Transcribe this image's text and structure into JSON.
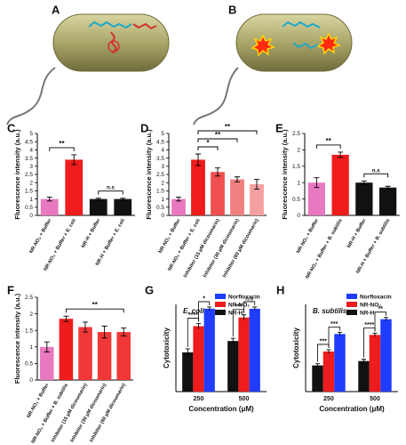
{
  "figure": {
    "panel_labels": {
      "A": "A",
      "B": "B",
      "C": "C",
      "D": "D",
      "E": "E",
      "F": "F",
      "G": "G",
      "H": "H"
    },
    "colors": {
      "pink": "#e879c0",
      "red": "#ee1c1c",
      "red_mid": "#f05050",
      "red_light": "#f28080",
      "red_pale": "#f5a0a0",
      "black": "#111111",
      "blue": "#1f3cff",
      "bacterium": "#a8a468"
    }
  },
  "chart_data": [
    {
      "panel": "C",
      "type": "bar",
      "ylabel": "Fluorescence intensity (a.u.)",
      "ylim": [
        0,
        5
      ],
      "yticks": [
        "0",
        "0.5",
        "1",
        "1.5",
        "2",
        "2.5",
        "3",
        "3.5",
        "4",
        "4.5",
        "5"
      ],
      "categories": [
        "NR-NO₂ + Buffer",
        "NR-NO₂ + Buffer + E. coli",
        "NR-H + Buffer",
        "NR-H + Buffer + E. coli"
      ],
      "values": [
        1.0,
        3.4,
        1.0,
        1.0
      ],
      "errors": [
        0.12,
        0.3,
        0.05,
        0.05
      ],
      "colors": [
        "#e879c0",
        "#ee1c1c",
        "#111111",
        "#111111"
      ],
      "annotations": [
        {
          "from": 0,
          "to": 1,
          "text": "**"
        },
        {
          "from": 2,
          "to": 3,
          "text": "n.s"
        }
      ]
    },
    {
      "panel": "D",
      "type": "bar",
      "ylabel": "Fluorescence intensity (a.u.)",
      "ylim": [
        0,
        5
      ],
      "yticks": [
        "0",
        "0.5",
        "1",
        "1.5",
        "2",
        "2.5",
        "3",
        "3.5",
        "4",
        "4.5",
        "5"
      ],
      "categories": [
        "NR-NO₂ + Buffer",
        "NR-NO₂ + Buffer + E. coli",
        "Inhibitor (15 μM dicoumarin)",
        "Inhibitor (30 μM dicoumarin)",
        "Inhibitor (60 μM dicoumarin)"
      ],
      "values": [
        1.0,
        3.4,
        2.65,
        2.2,
        1.9
      ],
      "errors": [
        0.12,
        0.35,
        0.25,
        0.15,
        0.3
      ],
      "colors": [
        "#e879c0",
        "#ee1c1c",
        "#f05050",
        "#f28080",
        "#f5a0a0"
      ],
      "annotations": [
        {
          "from": 1,
          "to": 2,
          "text": "*"
        },
        {
          "from": 1,
          "to": 3,
          "text": "**"
        },
        {
          "from": 1,
          "to": 4,
          "text": "**"
        }
      ]
    },
    {
      "panel": "E",
      "type": "bar",
      "ylabel": "Fluorescence intensity (a.u.)",
      "ylim": [
        0,
        2.5
      ],
      "yticks": [
        "0",
        "0.5",
        "1",
        "1.5",
        "2",
        "2.5"
      ],
      "categories": [
        "NR-NO₂ + Buffer",
        "NR-NO₂ + Buffer + B. subtilis",
        "NR-H + Buffer",
        "NR-H + Buffer + B. subtilis"
      ],
      "values": [
        1.0,
        1.85,
        1.0,
        0.85
      ],
      "errors": [
        0.15,
        0.08,
        0.05,
        0.04
      ],
      "colors": [
        "#e879c0",
        "#ee1c1c",
        "#111111",
        "#111111"
      ],
      "annotations": [
        {
          "from": 0,
          "to": 1,
          "text": "**"
        },
        {
          "from": 2,
          "to": 3,
          "text": "n.s"
        }
      ]
    },
    {
      "panel": "F",
      "type": "bar",
      "ylabel": "Fluorescence intensity (a.u.)",
      "ylim": [
        0,
        2.5
      ],
      "yticks": [
        "0",
        "0.5",
        "1",
        "1.5",
        "2",
        "2.5"
      ],
      "categories": [
        "NR-NO₂ + Buffer",
        "NR-NO₂ + Buffer + B. subtilis",
        "Inhibitor (15 μM dicoumarin)",
        "Inhibitor (30 μM dicoumarin)",
        "Inhibitor (60 μM dicoumarin)"
      ],
      "values": [
        1.0,
        1.85,
        1.6,
        1.45,
        1.45
      ],
      "errors": [
        0.15,
        0.08,
        0.15,
        0.18,
        0.12
      ],
      "colors": [
        "#e879c0",
        "#ee1c1c",
        "#f03838",
        "#f03838",
        "#f03838"
      ],
      "annotations": [
        {
          "from": 1,
          "to": 4,
          "text": "**"
        }
      ]
    },
    {
      "panel": "G",
      "type": "bar",
      "title": "E. coli",
      "xlabel": "Concentration (μM)",
      "ylabel": "Cytotoxicity",
      "ylim": [
        0,
        100
      ],
      "categories": [
        "250",
        "500"
      ],
      "series": [
        {
          "name": "NR-H",
          "values": [
            45,
            58
          ],
          "errors": [
            4,
            3
          ],
          "color": "#111111"
        },
        {
          "name": "NR-NO₂",
          "values": [
            75,
            85
          ],
          "errors": [
            3,
            3
          ],
          "color": "#ee1c1c"
        },
        {
          "name": "Norfloxacin",
          "values": [
            95,
            95
          ],
          "errors": [
            2,
            2
          ],
          "color": "#1f3cff"
        }
      ],
      "legend_order": [
        "Norfloxacin",
        "NR-NO₂",
        "NR-H"
      ],
      "legend": "top-right",
      "annotations": [
        {
          "group": 0,
          "from": 0,
          "to": 1,
          "text": "****"
        },
        {
          "group": 0,
          "from": 1,
          "to": 2,
          "text": "*"
        },
        {
          "group": 1,
          "from": 0,
          "to": 1,
          "text": "***"
        },
        {
          "group": 1,
          "from": 1,
          "to": 2,
          "text": "n.s"
        }
      ]
    },
    {
      "panel": "H",
      "type": "bar",
      "title": "B. subtilis",
      "xlabel": "Concentration (μM)",
      "ylabel": "Cytotoxicity",
      "ylim": [
        0,
        100
      ],
      "categories": [
        "250",
        "500"
      ],
      "series": [
        {
          "name": "NR-H",
          "values": [
            30,
            35
          ],
          "errors": [
            2,
            2
          ],
          "color": "#111111"
        },
        {
          "name": "NR-NO₂",
          "values": [
            46,
            65
          ],
          "errors": [
            2,
            2
          ],
          "color": "#ee1c1c"
        },
        {
          "name": "Norfloxacin",
          "values": [
            66,
            83
          ],
          "errors": [
            2,
            2
          ],
          "color": "#1f3cff"
        }
      ],
      "legend_order": [
        "Norfloxacin",
        "NR-NO₂",
        "NR-H"
      ],
      "legend": "top-right",
      "annotations": [
        {
          "group": 0,
          "from": 0,
          "to": 1,
          "text": "***"
        },
        {
          "group": 0,
          "from": 1,
          "to": 2,
          "text": "***"
        },
        {
          "group": 1,
          "from": 0,
          "to": 1,
          "text": "****"
        },
        {
          "group": 1,
          "from": 1,
          "to": 2,
          "text": "**"
        }
      ]
    }
  ]
}
